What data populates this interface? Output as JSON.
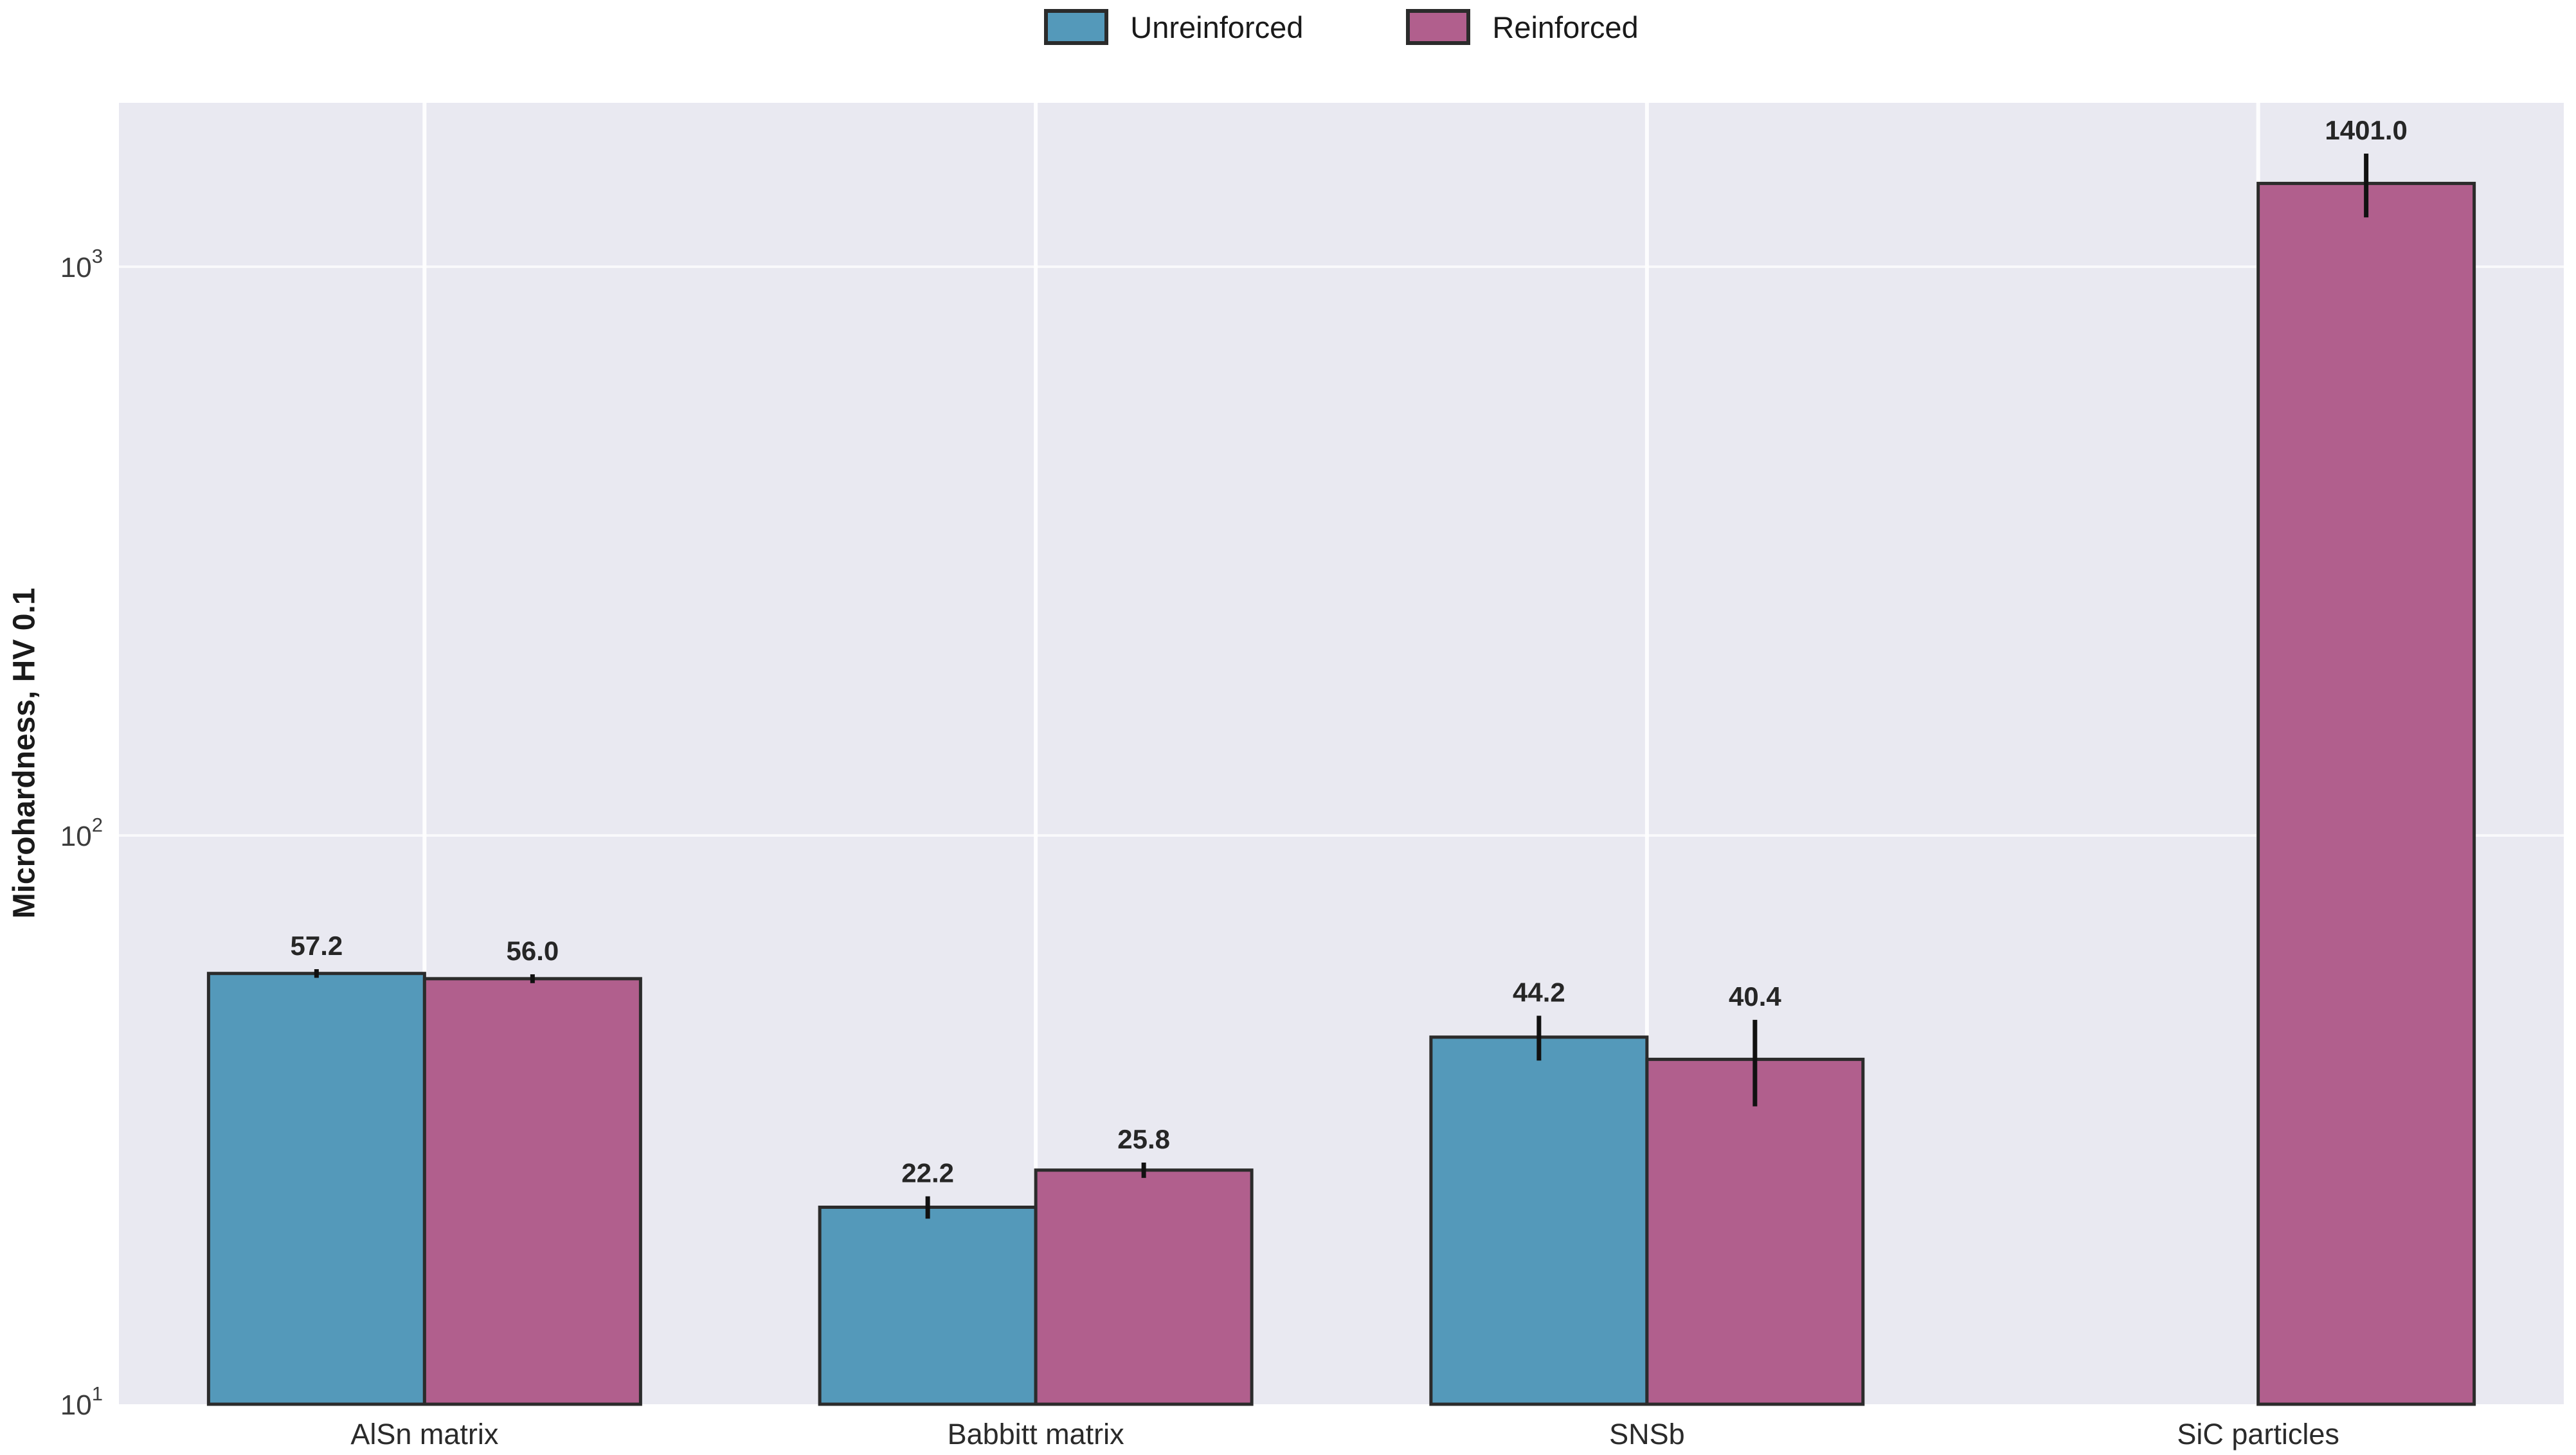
{
  "chart_data": {
    "type": "bar",
    "title": "",
    "xlabel": "",
    "ylabel": "Microhardness, HV 0.1",
    "y_scale": "log",
    "ylim": [
      10,
      1950
    ],
    "y_ticks": [
      {
        "base": "10",
        "exponent": "1",
        "value": 10
      },
      {
        "base": "10",
        "exponent": "2",
        "value": 100
      },
      {
        "base": "10",
        "exponent": "3",
        "value": 1000
      }
    ],
    "grid": true,
    "legend_position": "top-center",
    "categories": [
      "AlSn matrix",
      "Babbitt matrix",
      "SNSb",
      "SiC particles"
    ],
    "series": [
      {
        "name": "Unreinforced",
        "color": "#5499BA",
        "values": [
          57.2,
          22.2,
          44.2,
          null
        ],
        "errors": [
          1.0,
          1.0,
          4.0,
          null
        ],
        "labels": [
          "57.2",
          "22.2",
          "44.2",
          null
        ]
      },
      {
        "name": "Reinforced",
        "color": "#B15F8D",
        "values": [
          56.0,
          25.8,
          40.4,
          1401.0
        ],
        "errors": [
          1.0,
          0.8,
          7.0,
          180.0
        ],
        "labels": [
          "56.0",
          "25.8",
          "40.4",
          "1401.0"
        ]
      }
    ],
    "colors": {
      "plot_background": "#E9E9F1",
      "figure_background": "#FFFFFF",
      "gridline": "#FFFFFF",
      "bar_edge": "#2B2B2B",
      "error_bar": "#111111",
      "value_label": "#262626",
      "tick_label": "#3C3C3C",
      "axis_label": "#1A1A1A"
    }
  }
}
